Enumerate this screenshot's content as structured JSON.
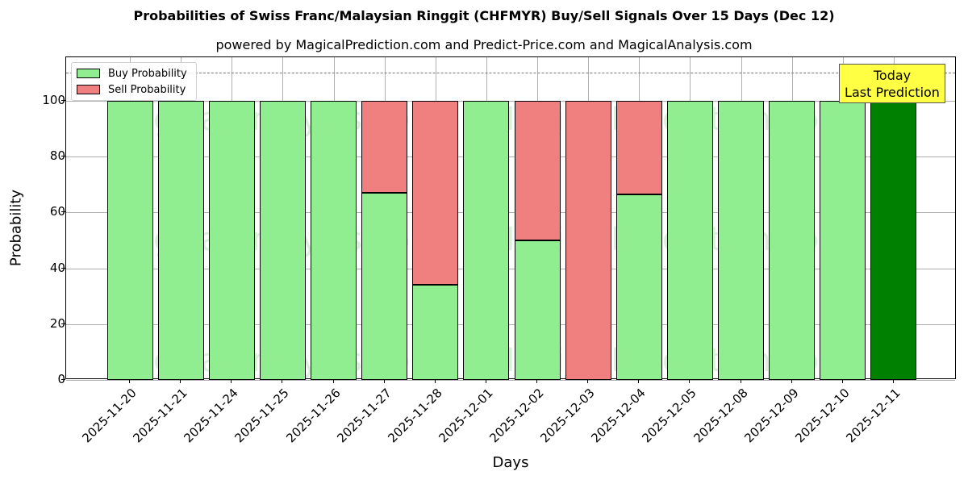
{
  "chart_data": {
    "type": "bar",
    "stacked": true,
    "title": "Probabilities of Swiss Franc/Malaysian Ringgit (CHFMYR) Buy/Sell Signals Over 15 Days (Dec 12)",
    "subtitle": "powered by MagicalPrediction.com and Predict-Price.com and MagicalAnalysis.com",
    "xlabel": "Days",
    "ylabel": "Probability",
    "ylim": [
      0,
      115
    ],
    "yticks": [
      0,
      20,
      40,
      60,
      80,
      100
    ],
    "grid": true,
    "legend_position": "upper left",
    "categories": [
      "2025-11-20",
      "2025-11-21",
      "2025-11-24",
      "2025-11-25",
      "2025-11-26",
      "2025-11-27",
      "2025-11-28",
      "2025-12-01",
      "2025-12-02",
      "2025-12-03",
      "2025-12-04",
      "2025-12-05",
      "2025-12-08",
      "2025-12-09",
      "2025-12-10",
      "2025-12-11"
    ],
    "series": [
      {
        "name": "Buy Probability",
        "color": "#90ee90",
        "values": [
          100,
          100,
          100,
          100,
          100,
          67,
          34,
          100,
          50,
          0,
          66.5,
          100,
          100,
          100,
          100,
          100
        ]
      },
      {
        "name": "Sell Probability",
        "color": "#f08080",
        "values": [
          0,
          0,
          0,
          0,
          0,
          33,
          66,
          0,
          50,
          100,
          33.5,
          0,
          0,
          0,
          0,
          0
        ]
      }
    ],
    "highlight_bar": {
      "index": 15,
      "color": "#008000"
    },
    "reference_line": {
      "y": 110,
      "style": "dashed",
      "color": "#777777"
    },
    "annotations": [
      {
        "text_line1": "Today",
        "text_line2": "Last Prediction",
        "background": "#ffff44"
      }
    ],
    "watermarks": [
      "MagicalAnalysis.com",
      "MagicalPrediction.com"
    ]
  }
}
